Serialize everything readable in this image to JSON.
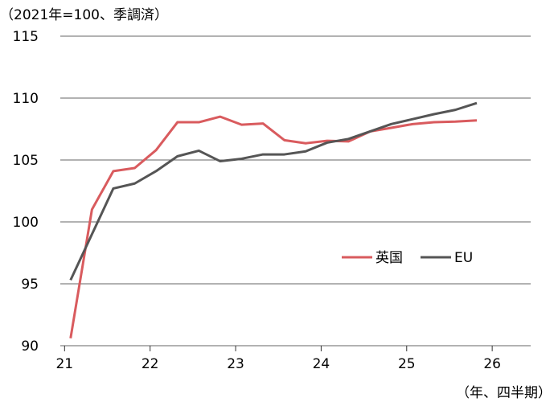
{
  "chart_data": {
    "type": "line",
    "y_label": "（2021年=100、季調済）",
    "x_label": "（年、四半期）",
    "x": [
      21.07,
      21.32,
      21.57,
      21.82,
      22.07,
      22.32,
      22.57,
      22.82,
      23.07,
      23.32,
      23.57,
      23.82,
      24.07,
      24.32,
      24.57,
      24.82,
      25.07,
      25.32,
      25.57,
      25.82
    ],
    "series": [
      {
        "name": "英国",
        "color": "#d95b5e",
        "values": [
          90.6,
          101.0,
          104.1,
          104.35,
          105.8,
          108.05,
          108.05,
          108.5,
          107.85,
          107.95,
          106.6,
          106.35,
          106.55,
          106.5,
          107.3,
          107.6,
          107.9,
          108.05,
          108.1,
          108.2
        ]
      },
      {
        "name": "EU",
        "color": "#555555",
        "values": [
          95.3,
          99.0,
          102.7,
          103.1,
          104.1,
          105.3,
          105.75,
          104.9,
          105.1,
          105.45,
          105.45,
          105.7,
          106.4,
          106.7,
          107.3,
          107.9,
          108.3,
          108.7,
          109.05,
          109.6
        ]
      }
    ],
    "xlim": [
      20.95,
      26.45
    ],
    "xticks": [
      21,
      22,
      23,
      24,
      25,
      26
    ],
    "ylim": [
      90,
      115
    ],
    "yticks": [
      90,
      95,
      100,
      105,
      110,
      115
    ],
    "grid": true,
    "legend": "inside"
  }
}
